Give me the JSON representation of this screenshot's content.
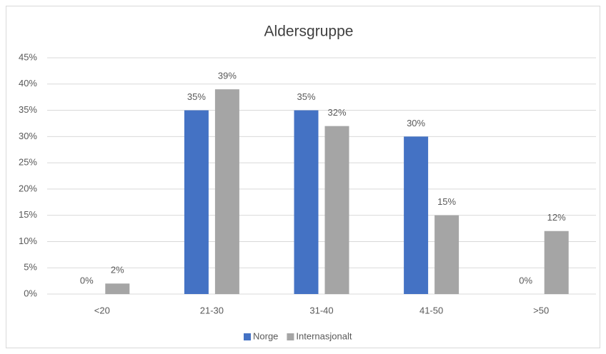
{
  "chart_data": {
    "type": "bar",
    "title": "Aldersgruppe",
    "categories": [
      "<20",
      "21-30",
      "31-40",
      "41-50",
      ">50"
    ],
    "series": [
      {
        "name": "Norge",
        "color": "#4472c4",
        "values": [
          0,
          35,
          35,
          30,
          0
        ],
        "value_labels": [
          "0%",
          "35%",
          "35%",
          "30%",
          "0%"
        ]
      },
      {
        "name": "Internasjonalt",
        "color": "#a5a5a5",
        "values": [
          2,
          39,
          32,
          15,
          12
        ],
        "value_labels": [
          "2%",
          "39%",
          "32%",
          "15%",
          "12%"
        ]
      }
    ],
    "ylim": [
      0,
      45
    ],
    "yticks": [
      {
        "value": 0,
        "label": "0%"
      },
      {
        "value": 5,
        "label": "5%"
      },
      {
        "value": 10,
        "label": "10%"
      },
      {
        "value": 15,
        "label": "15%"
      },
      {
        "value": 20,
        "label": "20%"
      },
      {
        "value": 25,
        "label": "25%"
      },
      {
        "value": 30,
        "label": "30%"
      },
      {
        "value": 35,
        "label": "35%"
      },
      {
        "value": 40,
        "label": "40%"
      },
      {
        "value": 45,
        "label": "45%"
      }
    ],
    "grid": true,
    "legend": "bottom"
  }
}
